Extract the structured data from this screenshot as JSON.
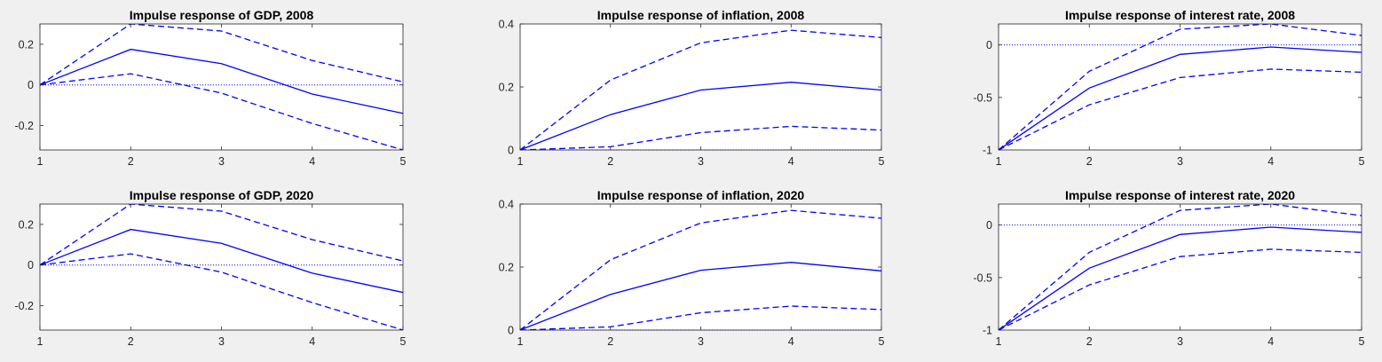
{
  "figure": {
    "background": "#f0f0f0",
    "axes_background": "#ffffff",
    "axes_color": "#262626",
    "line_color": "#0000ff"
  },
  "chart_data": [
    {
      "type": "line",
      "title": "Impulse response of GDP, 2008",
      "x": [
        1,
        2,
        3,
        4,
        5
      ],
      "xlim": [
        1,
        5
      ],
      "ylim": [
        -0.32,
        0.3
      ],
      "xticks": [
        "1",
        "2",
        "3",
        "4",
        "5"
      ],
      "yticks": [
        {
          "value": 0.2,
          "label": "0.2"
        },
        {
          "value": 0,
          "label": "0"
        },
        {
          "value": -0.2,
          "label": "-0.2"
        }
      ],
      "zero_line": 0,
      "series": [
        {
          "style": "solid",
          "values": [
            0,
            0.175,
            0.105,
            -0.045,
            -0.14
          ]
        },
        {
          "style": "dashed",
          "values": [
            0,
            0.3,
            0.265,
            0.12,
            0.015
          ]
        },
        {
          "style": "dashed",
          "values": [
            0,
            0.055,
            -0.04,
            -0.19,
            -0.32
          ]
        }
      ]
    },
    {
      "type": "line",
      "title": "Impulse response of inflation, 2008",
      "x": [
        1,
        2,
        3,
        4,
        5
      ],
      "xlim": [
        1,
        5
      ],
      "ylim": [
        0,
        0.4
      ],
      "xticks": [
        "1",
        "2",
        "3",
        "4",
        "5"
      ],
      "yticks": [
        {
          "value": 0.4,
          "label": "0.4"
        },
        {
          "value": 0.2,
          "label": "0.2"
        },
        {
          "value": 0,
          "label": "0"
        }
      ],
      "zero_line": 0,
      "series": [
        {
          "style": "solid",
          "values": [
            0,
            0.112,
            0.19,
            0.215,
            0.19
          ]
        },
        {
          "style": "dashed",
          "values": [
            0,
            0.222,
            0.34,
            0.38,
            0.357
          ]
        },
        {
          "style": "dashed",
          "values": [
            0,
            0.01,
            0.055,
            0.075,
            0.063
          ]
        }
      ]
    },
    {
      "type": "line",
      "title": "Impulse response of interest rate, 2008",
      "x": [
        1,
        2,
        3,
        4,
        5
      ],
      "xlim": [
        1,
        5
      ],
      "ylim": [
        -1,
        0.2
      ],
      "xticks": [
        "1",
        "2",
        "3",
        "4",
        "5"
      ],
      "yticks": [
        {
          "value": 0,
          "label": "0"
        },
        {
          "value": -0.5,
          "label": "-0.5"
        },
        {
          "value": -1,
          "label": "-1"
        }
      ],
      "zero_line": 0,
      "series": [
        {
          "style": "solid",
          "values": [
            -1,
            -0.41,
            -0.09,
            -0.02,
            -0.07
          ]
        },
        {
          "style": "dashed",
          "values": [
            -1,
            -0.25,
            0.15,
            0.2,
            0.09
          ]
        },
        {
          "style": "dashed",
          "values": [
            -1,
            -0.57,
            -0.31,
            -0.23,
            -0.26
          ]
        }
      ]
    },
    {
      "type": "line",
      "title": "Impulse response of GDP, 2020",
      "x": [
        1,
        2,
        3,
        4,
        5
      ],
      "xlim": [
        1,
        5
      ],
      "ylim": [
        -0.32,
        0.3
      ],
      "xticks": [
        "1",
        "2",
        "3",
        "4",
        "5"
      ],
      "yticks": [
        {
          "value": 0.2,
          "label": "0.2"
        },
        {
          "value": 0,
          "label": "0"
        },
        {
          "value": -0.2,
          "label": "-0.2"
        }
      ],
      "zero_line": 0,
      "series": [
        {
          "style": "solid",
          "values": [
            0,
            0.175,
            0.107,
            -0.04,
            -0.135
          ]
        },
        {
          "style": "dashed",
          "values": [
            0,
            0.3,
            0.265,
            0.125,
            0.02
          ]
        },
        {
          "style": "dashed",
          "values": [
            0,
            0.055,
            -0.035,
            -0.185,
            -0.32
          ]
        }
      ]
    },
    {
      "type": "line",
      "title": "Impulse response of inflation, 2020",
      "x": [
        1,
        2,
        3,
        4,
        5
      ],
      "xlim": [
        1,
        5
      ],
      "ylim": [
        0,
        0.4
      ],
      "xticks": [
        "1",
        "2",
        "3",
        "4",
        "5"
      ],
      "yticks": [
        {
          "value": 0.4,
          "label": "0.4"
        },
        {
          "value": 0.2,
          "label": "0.2"
        },
        {
          "value": 0,
          "label": "0"
        }
      ],
      "zero_line": 0,
      "series": [
        {
          "style": "solid",
          "values": [
            0,
            0.113,
            0.19,
            0.215,
            0.188
          ]
        },
        {
          "style": "dashed",
          "values": [
            0,
            0.223,
            0.34,
            0.38,
            0.355
          ]
        },
        {
          "style": "dashed",
          "values": [
            0,
            0.01,
            0.055,
            0.076,
            0.065
          ]
        }
      ]
    },
    {
      "type": "line",
      "title": "Impulse response of interest rate, 2020",
      "x": [
        1,
        2,
        3,
        4,
        5
      ],
      "xlim": [
        1,
        5
      ],
      "ylim": [
        -1,
        0.2
      ],
      "xticks": [
        "1",
        "2",
        "3",
        "4",
        "5"
      ],
      "yticks": [
        {
          "value": 0,
          "label": "0"
        },
        {
          "value": -0.5,
          "label": "-0.5"
        },
        {
          "value": -1,
          "label": "-1"
        }
      ],
      "zero_line": 0,
      "series": [
        {
          "style": "solid",
          "values": [
            -1,
            -0.41,
            -0.09,
            -0.02,
            -0.07
          ]
        },
        {
          "style": "dashed",
          "values": [
            -1,
            -0.26,
            0.14,
            0.2,
            0.09
          ]
        },
        {
          "style": "dashed",
          "values": [
            -1,
            -0.57,
            -0.3,
            -0.23,
            -0.26
          ]
        }
      ]
    }
  ]
}
